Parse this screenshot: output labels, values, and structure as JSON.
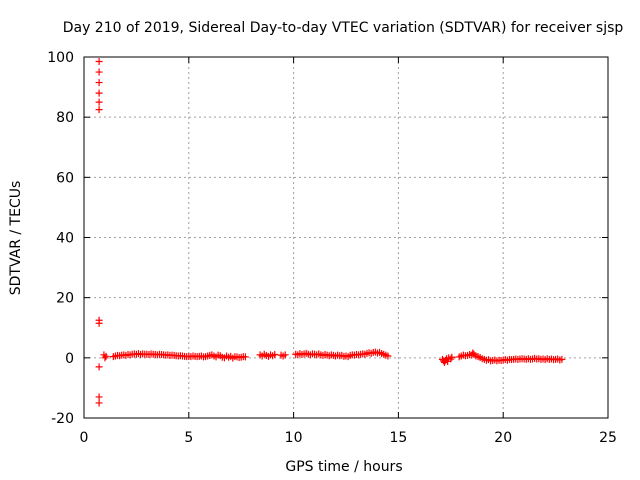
{
  "chart_data": {
    "type": "scatter",
    "title": "Day 210 of 2019, Sidereal Day-to-day VTEC variation (SDTVAR) for receiver sjsp",
    "xlabel": "GPS time / hours",
    "ylabel": "SDTVAR / TECUs",
    "xlim": [
      0,
      25
    ],
    "ylim": [
      -20,
      100
    ],
    "xticks": [
      0,
      5,
      10,
      15,
      20,
      25
    ],
    "xtick_labels": [
      "0",
      "5",
      "10",
      "15",
      "20",
      "25"
    ],
    "yticks": [
      -20,
      0,
      20,
      40,
      60,
      80,
      100
    ],
    "ytick_labels": [
      "-20",
      "0",
      "20",
      "40",
      "60",
      "80",
      "100"
    ],
    "grid": true,
    "legend": "none",
    "marker": "plus",
    "color": "#ff0000",
    "series": [
      {
        "points": [
          [
            0.72,
            98.5
          ],
          [
            0.72,
            95
          ],
          [
            0.72,
            91.5
          ],
          [
            0.72,
            88
          ],
          [
            0.72,
            85
          ],
          [
            0.72,
            82.5
          ],
          [
            0.72,
            12.5
          ],
          [
            0.72,
            11.5
          ],
          [
            0.72,
            -3
          ],
          [
            0.72,
            -13
          ],
          [
            0.72,
            -15
          ],
          [
            0.95,
            1
          ],
          [
            1.0,
            0
          ],
          [
            1.05,
            0.5
          ],
          [
            1.4,
            0.4
          ],
          [
            1.5,
            0.6
          ],
          [
            1.6,
            0.8
          ],
          [
            1.7,
            0.7
          ],
          [
            1.8,
            0.9
          ],
          [
            1.9,
            1
          ],
          [
            2.0,
            0.8
          ],
          [
            2.1,
            1.1
          ],
          [
            2.2,
            1.0
          ],
          [
            2.3,
            1.2
          ],
          [
            2.4,
            1.3
          ],
          [
            2.5,
            1.2
          ],
          [
            2.6,
            1.4
          ],
          [
            2.7,
            1.1
          ],
          [
            2.8,
            1.3
          ],
          [
            2.9,
            1.2
          ],
          [
            3.0,
            1.2
          ],
          [
            3.1,
            1.1
          ],
          [
            3.2,
            1.3
          ],
          [
            3.3,
            1.2
          ],
          [
            3.4,
            1.1
          ],
          [
            3.5,
            1.0
          ],
          [
            3.6,
            1.2
          ],
          [
            3.7,
            1.1
          ],
          [
            3.8,
            1.0
          ],
          [
            3.9,
            0.9
          ],
          [
            4.0,
            1.0
          ],
          [
            4.1,
            0.8
          ],
          [
            4.2,
            0.9
          ],
          [
            4.3,
            0.8
          ],
          [
            4.4,
            0.7
          ],
          [
            4.5,
            0.6
          ],
          [
            4.6,
            0.7
          ],
          [
            4.7,
            0.6
          ],
          [
            4.8,
            0.5
          ],
          [
            4.9,
            0.4
          ],
          [
            5.0,
            0.5
          ],
          [
            5.1,
            0.4
          ],
          [
            5.2,
            0.6
          ],
          [
            5.3,
            0.5
          ],
          [
            5.4,
            0.4
          ],
          [
            5.5,
            0.5
          ],
          [
            5.6,
            0.6
          ],
          [
            5.7,
            0.3
          ],
          [
            5.8,
            0.4
          ],
          [
            5.9,
            0.6
          ],
          [
            6.0,
            0.8
          ],
          [
            6.1,
            1.0
          ],
          [
            6.2,
            0.6
          ],
          [
            6.3,
            0.3
          ],
          [
            6.4,
            0.9
          ],
          [
            6.5,
            0.7
          ],
          [
            6.6,
            0.2
          ],
          [
            6.7,
            0.0
          ],
          [
            6.8,
            0.6
          ],
          [
            6.9,
            0.2
          ],
          [
            7.0,
            0.5
          ],
          [
            7.1,
            -0.1
          ],
          [
            7.2,
            0.4
          ],
          [
            7.3,
            0.3
          ],
          [
            7.4,
            0.1
          ],
          [
            7.5,
            0.2
          ],
          [
            7.6,
            0.4
          ],
          [
            7.7,
            0.3
          ],
          [
            8.4,
            1.0
          ],
          [
            8.5,
            0.6
          ],
          [
            8.6,
            1.2
          ],
          [
            8.7,
            0.8
          ],
          [
            8.8,
            0.5
          ],
          [
            8.9,
            1.0
          ],
          [
            9.0,
            0.7
          ],
          [
            9.1,
            1.1
          ],
          [
            9.4,
            0.9
          ],
          [
            9.5,
            0.6
          ],
          [
            9.6,
            1.0
          ],
          [
            10.1,
            1.2
          ],
          [
            10.2,
            1.0
          ],
          [
            10.3,
            1.4
          ],
          [
            10.4,
            1.1
          ],
          [
            10.5,
            1.3
          ],
          [
            10.6,
            1.5
          ],
          [
            10.7,
            1.2
          ],
          [
            10.8,
            1.0
          ],
          [
            10.9,
            1.3
          ],
          [
            11.0,
            1.2
          ],
          [
            11.1,
            1.0
          ],
          [
            11.2,
            1.3
          ],
          [
            11.3,
            1.0
          ],
          [
            11.4,
            0.8
          ],
          [
            11.5,
            1.1
          ],
          [
            11.6,
            0.9
          ],
          [
            11.7,
            0.7
          ],
          [
            11.8,
            1.0
          ],
          [
            11.9,
            0.8
          ],
          [
            12.0,
            0.6
          ],
          [
            12.1,
            0.9
          ],
          [
            12.2,
            0.7
          ],
          [
            12.3,
            0.8
          ],
          [
            12.4,
            0.5
          ],
          [
            12.5,
            0.6
          ],
          [
            12.6,
            0.4
          ],
          [
            12.7,
            0.8
          ],
          [
            12.8,
            1.0
          ],
          [
            12.9,
            0.9
          ],
          [
            13.0,
            1.1
          ],
          [
            13.1,
            1.0
          ],
          [
            13.2,
            1.2
          ],
          [
            13.3,
            1.3
          ],
          [
            13.4,
            1.2
          ],
          [
            13.5,
            1.5
          ],
          [
            13.6,
            1.7
          ],
          [
            13.7,
            1.5
          ],
          [
            13.8,
            1.8
          ],
          [
            13.9,
            1.9
          ],
          [
            14.0,
            1.6
          ],
          [
            14.1,
            1.8
          ],
          [
            14.2,
            1.4
          ],
          [
            14.3,
            1.2
          ],
          [
            14.4,
            0.9
          ],
          [
            14.5,
            0.6
          ],
          [
            17.1,
            -0.5
          ],
          [
            17.15,
            -1.0
          ],
          [
            17.2,
            -1.5
          ],
          [
            17.25,
            -0.8
          ],
          [
            17.3,
            -0.3
          ],
          [
            17.35,
            -1.2
          ],
          [
            17.4,
            0.0
          ],
          [
            17.5,
            -0.4
          ],
          [
            17.55,
            0.2
          ],
          [
            17.9,
            0.3
          ],
          [
            18.0,
            0.6
          ],
          [
            18.1,
            0.9
          ],
          [
            18.2,
            0.7
          ],
          [
            18.3,
            0.8
          ],
          [
            18.4,
            1.1
          ],
          [
            18.5,
            0.9
          ],
          [
            18.55,
            1.6
          ],
          [
            18.6,
            1.2
          ],
          [
            18.7,
            0.6
          ],
          [
            18.8,
            0.4
          ],
          [
            18.9,
            0.1
          ],
          [
            19.0,
            -0.3
          ],
          [
            19.1,
            -0.5
          ],
          [
            19.2,
            -0.8
          ],
          [
            19.3,
            -0.6
          ],
          [
            19.4,
            -1.0
          ],
          [
            19.5,
            -0.9
          ],
          [
            19.6,
            -0.7
          ],
          [
            19.7,
            -1.0
          ],
          [
            19.8,
            -0.8
          ],
          [
            19.9,
            -0.9
          ],
          [
            20.0,
            -0.7
          ],
          [
            20.1,
            -0.6
          ],
          [
            20.2,
            -0.8
          ],
          [
            20.3,
            -0.5
          ],
          [
            20.4,
            -0.6
          ],
          [
            20.5,
            -0.5
          ],
          [
            20.6,
            -0.4
          ],
          [
            20.7,
            -0.5
          ],
          [
            20.8,
            -0.4
          ],
          [
            20.9,
            -0.3
          ],
          [
            21.0,
            -0.4
          ],
          [
            21.1,
            -0.5
          ],
          [
            21.2,
            -0.3
          ],
          [
            21.3,
            -0.5
          ],
          [
            21.4,
            -0.4
          ],
          [
            21.5,
            -0.2
          ],
          [
            21.6,
            -0.4
          ],
          [
            21.7,
            -0.3
          ],
          [
            21.8,
            -0.5
          ],
          [
            21.9,
            -0.4
          ],
          [
            22.0,
            -0.6
          ],
          [
            22.1,
            -0.3
          ],
          [
            22.2,
            -0.5
          ],
          [
            22.3,
            -0.4
          ],
          [
            22.4,
            -0.6
          ],
          [
            22.5,
            -0.5
          ],
          [
            22.6,
            -0.4
          ],
          [
            22.7,
            -0.7
          ],
          [
            22.8,
            -0.5
          ]
        ]
      }
    ]
  }
}
